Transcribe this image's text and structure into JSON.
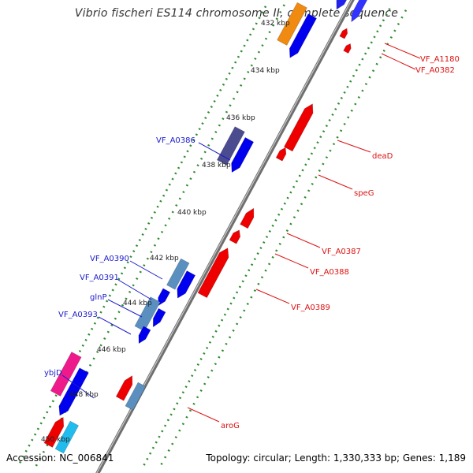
{
  "title": "Vibrio fischeri ES114 chromosome II, complete sequence",
  "footer": {
    "accession": "Accession: NC_006841",
    "summary": "Topology: circular; Length: 1,330,333 bp; Genes: 1,189"
  },
  "colors": {
    "backbone": "#8a8a8a",
    "tick_dots": "#2e8b2e",
    "forward_label": "#1a1acc",
    "reverse_label": "#dd1111",
    "forward_cds": "#0000ee",
    "reverse_cds": "#ee0000"
  },
  "scale_labels": [
    "432 kbp",
    "434 kbp",
    "436 kbp",
    "438 kbp",
    "440 kbp",
    "442 kbp",
    "444 kbp",
    "446 kbp",
    "448 kbp",
    "450 kbp"
  ],
  "forward_labels": [
    "VF_A0386",
    "VF_A0390",
    "VF_A0391",
    "glnP",
    "VF_A0393",
    "ybjD"
  ],
  "reverse_labels": [
    "VF_A1180",
    "VF_A0382",
    "deaD",
    "speG",
    "VF_A0387",
    "VF_A0388",
    "VF_A0389",
    "aroG"
  ]
}
